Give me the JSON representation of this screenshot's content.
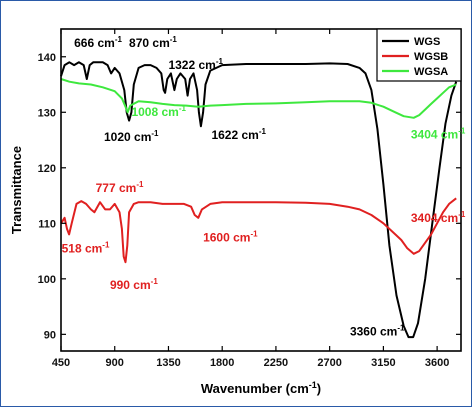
{
  "chart_data": {
    "type": "line",
    "title": "",
    "xlabel": "Wavenumber (cm",
    "xlabel_sup": "-1",
    "xlabel_end": ")",
    "ylabel": "Transmittance",
    "xlim": [
      450,
      3800
    ],
    "ylim": [
      87,
      145
    ],
    "x_ticks": [
      450,
      900,
      1350,
      1800,
      2250,
      2700,
      3150,
      3600
    ],
    "y_ticks": [
      90,
      100,
      110,
      120,
      130,
      140
    ],
    "grid": false,
    "legend_position": "top-right",
    "series": [
      {
        "name": "WGS",
        "color": "#000000",
        "points": [
          [
            450,
            136.5
          ],
          [
            480,
            138.5
          ],
          [
            520,
            139
          ],
          [
            560,
            138.5
          ],
          [
            600,
            139
          ],
          [
            640,
            138.5
          ],
          [
            666,
            136
          ],
          [
            690,
            138.5
          ],
          [
            720,
            139
          ],
          [
            760,
            139
          ],
          [
            800,
            139
          ],
          [
            840,
            138.5
          ],
          [
            870,
            137
          ],
          [
            900,
            138
          ],
          [
            940,
            137
          ],
          [
            980,
            134
          ],
          [
            1000,
            130
          ],
          [
            1020,
            128.5
          ],
          [
            1040,
            130
          ],
          [
            1060,
            135
          ],
          [
            1100,
            138
          ],
          [
            1150,
            138.5
          ],
          [
            1200,
            138.5
          ],
          [
            1250,
            138
          ],
          [
            1290,
            137
          ],
          [
            1310,
            134
          ],
          [
            1322,
            133.5
          ],
          [
            1340,
            136
          ],
          [
            1370,
            137
          ],
          [
            1400,
            134
          ],
          [
            1420,
            136
          ],
          [
            1450,
            137
          ],
          [
            1490,
            136
          ],
          [
            1510,
            133
          ],
          [
            1530,
            136
          ],
          [
            1560,
            137
          ],
          [
            1590,
            134
          ],
          [
            1605,
            130
          ],
          [
            1622,
            127.5
          ],
          [
            1640,
            130
          ],
          [
            1660,
            135
          ],
          [
            1700,
            137.5
          ],
          [
            1800,
            138.5
          ],
          [
            2000,
            138.7
          ],
          [
            2250,
            138.7
          ],
          [
            2500,
            138.7
          ],
          [
            2700,
            138.8
          ],
          [
            2850,
            138.7
          ],
          [
            2950,
            138
          ],
          [
            3000,
            137
          ],
          [
            3050,
            134
          ],
          [
            3100,
            127
          ],
          [
            3150,
            117
          ],
          [
            3200,
            106
          ],
          [
            3260,
            97
          ],
          [
            3320,
            91.5
          ],
          [
            3360,
            89.5
          ],
          [
            3400,
            89.5
          ],
          [
            3440,
            92
          ],
          [
            3500,
            100
          ],
          [
            3560,
            110
          ],
          [
            3620,
            120
          ],
          [
            3670,
            128
          ],
          [
            3720,
            133
          ],
          [
            3760,
            135.5
          ]
        ]
      },
      {
        "name": "WGSB",
        "color": "#e02020",
        "points": [
          [
            450,
            110
          ],
          [
            480,
            111
          ],
          [
            500,
            109
          ],
          [
            518,
            108
          ],
          [
            540,
            110
          ],
          [
            580,
            113.5
          ],
          [
            620,
            114
          ],
          [
            660,
            113.5
          ],
          [
            700,
            112.5
          ],
          [
            730,
            112
          ],
          [
            777,
            113.8
          ],
          [
            820,
            112.5
          ],
          [
            860,
            112.5
          ],
          [
            900,
            113.5
          ],
          [
            940,
            112
          ],
          [
            960,
            109
          ],
          [
            975,
            104
          ],
          [
            990,
            103
          ],
          [
            1005,
            106
          ],
          [
            1020,
            112
          ],
          [
            1060,
            113.5
          ],
          [
            1100,
            113.8
          ],
          [
            1200,
            113.8
          ],
          [
            1300,
            113.5
          ],
          [
            1400,
            113.5
          ],
          [
            1480,
            113.5
          ],
          [
            1540,
            113
          ],
          [
            1570,
            111.5
          ],
          [
            1600,
            111
          ],
          [
            1630,
            112.5
          ],
          [
            1700,
            113.5
          ],
          [
            1800,
            113.8
          ],
          [
            2000,
            113.8
          ],
          [
            2250,
            113.8
          ],
          [
            2500,
            113.7
          ],
          [
            2700,
            113.5
          ],
          [
            2850,
            113
          ],
          [
            2950,
            112.5
          ],
          [
            3050,
            111.5
          ],
          [
            3150,
            110
          ],
          [
            3250,
            108
          ],
          [
            3300,
            107
          ],
          [
            3350,
            105.5
          ],
          [
            3404,
            104.5
          ],
          [
            3450,
            105
          ],
          [
            3500,
            106.5
          ],
          [
            3550,
            108
          ],
          [
            3600,
            110
          ],
          [
            3650,
            112
          ],
          [
            3700,
            113.5
          ],
          [
            3760,
            114.5
          ]
        ]
      },
      {
        "name": "WGSA",
        "color": "#3ee83e",
        "points": [
          [
            450,
            136
          ],
          [
            520,
            135.5
          ],
          [
            600,
            135.2
          ],
          [
            700,
            135
          ],
          [
            800,
            134.5
          ],
          [
            900,
            133.8
          ],
          [
            960,
            132.5
          ],
          [
            990,
            131
          ],
          [
            1008,
            130
          ],
          [
            1030,
            131.2
          ],
          [
            1100,
            132
          ],
          [
            1200,
            131.8
          ],
          [
            1300,
            131.5
          ],
          [
            1400,
            131.3
          ],
          [
            1500,
            131.2
          ],
          [
            1600,
            131
          ],
          [
            1700,
            131.2
          ],
          [
            1800,
            131.3
          ],
          [
            2000,
            131.5
          ],
          [
            2250,
            131.6
          ],
          [
            2500,
            131.8
          ],
          [
            2700,
            132
          ],
          [
            2850,
            132
          ],
          [
            2950,
            132
          ],
          [
            3050,
            131.7
          ],
          [
            3150,
            131
          ],
          [
            3250,
            130
          ],
          [
            3320,
            129.3
          ],
          [
            3404,
            129
          ],
          [
            3450,
            129.5
          ],
          [
            3500,
            130.5
          ],
          [
            3550,
            131.5
          ],
          [
            3600,
            132.5
          ],
          [
            3650,
            133.5
          ],
          [
            3700,
            134.5
          ],
          [
            3760,
            135
          ]
        ]
      }
    ],
    "annotations": [
      {
        "text": "666 cm",
        "sup": "-1",
        "color": "#000000",
        "x": 560,
        "y": 141.8
      },
      {
        "text": "870 cm",
        "sup": "-1",
        "color": "#000000",
        "x": 1020,
        "y": 141.8
      },
      {
        "text": "1322 cm",
        "sup": "-1",
        "color": "#000000",
        "x": 1350,
        "y": 137.8
      },
      {
        "text": "1020 cm",
        "sup": "-1",
        "color": "#000000",
        "x": 810,
        "y": 124.8
      },
      {
        "text": "1622 cm",
        "sup": "-1",
        "color": "#000000",
        "x": 1710,
        "y": 125.2
      },
      {
        "text": "1008 cm",
        "sup": "-1",
        "color": "#3ee83e",
        "x": 1040,
        "y": 129.3
      },
      {
        "text": "3404 cm",
        "sup": "-1",
        "color": "#3ee83e",
        "x": 3380,
        "y": 125.3
      },
      {
        "text": "777 cm",
        "sup": "-1",
        "color": "#e02020",
        "x": 740,
        "y": 115.6
      },
      {
        "text": "3404 cm",
        "sup": "-1",
        "color": "#e02020",
        "x": 3380,
        "y": 110.2
      },
      {
        "text": "518 cm",
        "sup": "-1",
        "color": "#e02020",
        "x": 455,
        "y": 104.7
      },
      {
        "text": "1600 cm",
        "sup": "-1",
        "color": "#e02020",
        "x": 1640,
        "y": 106.7
      },
      {
        "text": "990 cm",
        "sup": "-1",
        "color": "#e02020",
        "x": 860,
        "y": 98.2
      },
      {
        "text": "3360 cm",
        "sup": "-1",
        "color": "#000000",
        "x": 2870,
        "y": 89.8
      }
    ]
  }
}
